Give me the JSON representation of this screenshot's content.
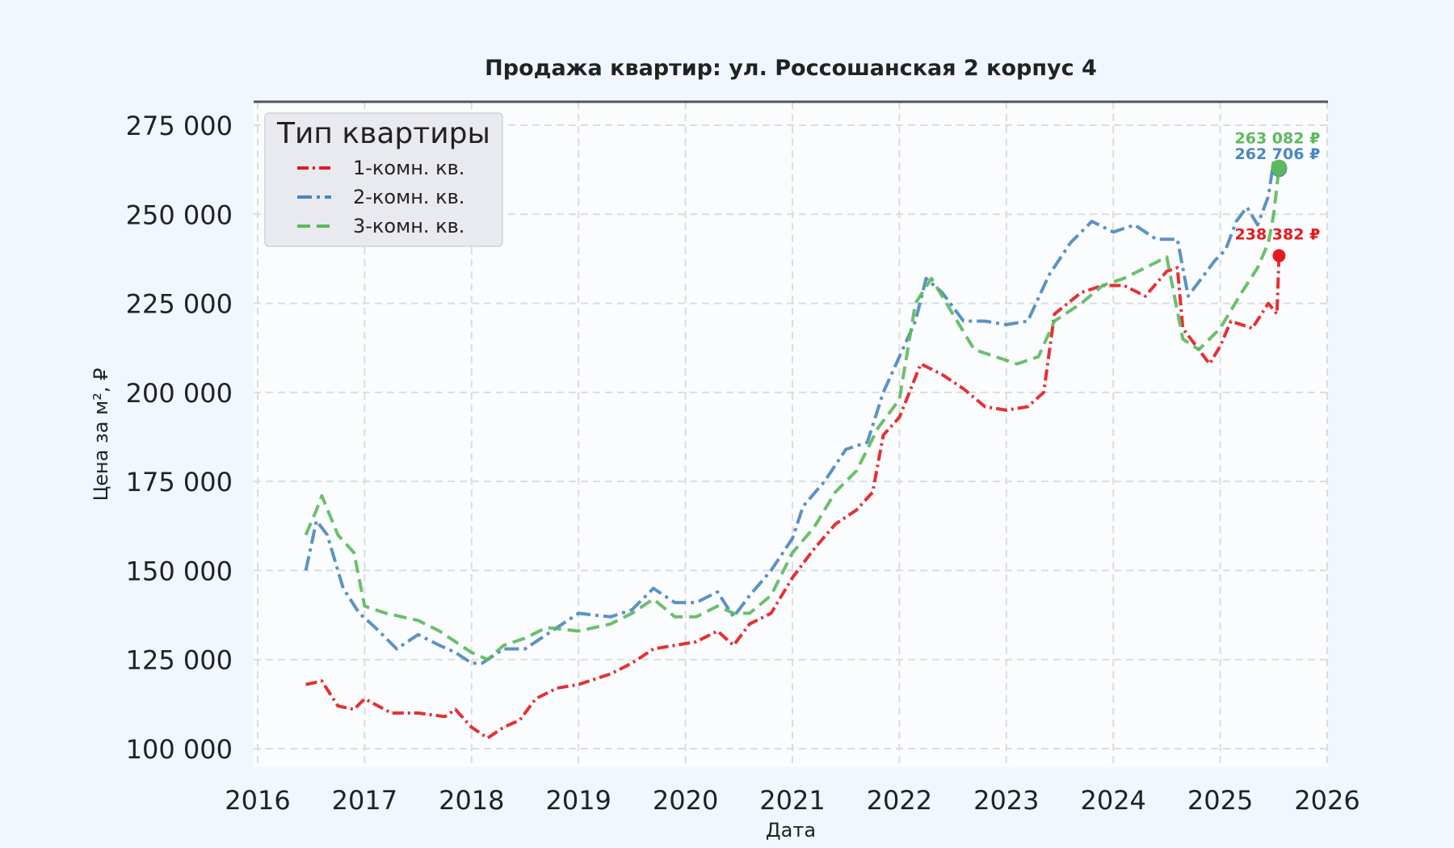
{
  "chart_data": {
    "type": "line",
    "title": "Продажа квартир: ул. Россошанская 2 корпус 4",
    "xlabel": "Дата",
    "ylabel": "Цена за м², ₽",
    "xlim": [
      2016.0,
      2026.0
    ],
    "ylim": [
      95000,
      280000
    ],
    "x_ticks": [
      "2016",
      "2017",
      "2018",
      "2019",
      "2020",
      "2021",
      "2022",
      "2023",
      "2024",
      "2025",
      "2026"
    ],
    "y_ticks": [
      "100 000",
      "125 000",
      "150 000",
      "175 000",
      "200 000",
      "225 000",
      "250 000",
      "275 000"
    ],
    "grid": true,
    "legend": {
      "title": "Тип квартиры",
      "placement": "top-left"
    },
    "series": [
      {
        "name": "1-комн. кв.",
        "color": "#e41a1c",
        "dash": "dot-dash",
        "end_label": "238 382 ₽",
        "x": [
          2016.45,
          2016.6,
          2016.75,
          2016.9,
          2017.0,
          2017.25,
          2017.5,
          2017.75,
          2017.85,
          2018.0,
          2018.15,
          2018.3,
          2018.45,
          2018.6,
          2018.8,
          2019.0,
          2019.3,
          2019.5,
          2019.7,
          2019.9,
          2020.1,
          2020.3,
          2020.45,
          2020.6,
          2020.8,
          2021.0,
          2021.2,
          2021.4,
          2021.6,
          2021.75,
          2021.85,
          2022.0,
          2022.2,
          2022.4,
          2022.6,
          2022.8,
          2023.0,
          2023.2,
          2023.35,
          2023.45,
          2023.7,
          2023.9,
          2024.1,
          2024.3,
          2024.5,
          2024.6,
          2024.65,
          2024.8,
          2024.9,
          2025.0,
          2025.1,
          2025.3,
          2025.45,
          2025.53,
          2025.55
        ],
        "y": [
          118000,
          119000,
          112000,
          111000,
          114000,
          110000,
          110000,
          109000,
          111000,
          106000,
          103000,
          106000,
          108000,
          114000,
          117000,
          118000,
          121000,
          124000,
          128000,
          129000,
          130000,
          133000,
          129000,
          135000,
          138000,
          148000,
          156000,
          163000,
          167000,
          172000,
          188000,
          193000,
          208000,
          205000,
          201000,
          196000,
          195000,
          196000,
          200000,
          222000,
          228000,
          230000,
          230000,
          227000,
          234000,
          235000,
          218000,
          212000,
          208000,
          213000,
          220000,
          218000,
          225000,
          222000,
          238382
        ]
      },
      {
        "name": "2-комн. кв.",
        "color": "#4a86c0",
        "dash": "dash-dot",
        "end_label": "262 706 ₽",
        "x": [
          2016.45,
          2016.55,
          2016.65,
          2016.8,
          2016.95,
          2017.1,
          2017.3,
          2017.5,
          2017.7,
          2017.85,
          2018.0,
          2018.1,
          2018.3,
          2018.5,
          2018.7,
          2019.0,
          2019.3,
          2019.5,
          2019.7,
          2019.9,
          2020.1,
          2020.3,
          2020.45,
          2020.6,
          2020.8,
          2021.0,
          2021.1,
          2021.3,
          2021.5,
          2021.7,
          2021.85,
          2022.0,
          2022.15,
          2022.25,
          2022.4,
          2022.6,
          2022.8,
          2023.0,
          2023.2,
          2023.4,
          2023.6,
          2023.8,
          2024.0,
          2024.2,
          2024.4,
          2024.6,
          2024.7,
          2024.85,
          2024.95,
          2025.05,
          2025.15,
          2025.25,
          2025.35,
          2025.45,
          2025.5,
          2025.55
        ],
        "y": [
          150000,
          164000,
          160000,
          145000,
          138000,
          134000,
          128000,
          132000,
          129000,
          127000,
          124000,
          124000,
          128000,
          128000,
          132000,
          138000,
          137000,
          139000,
          145000,
          141000,
          141000,
          144000,
          137000,
          143000,
          150000,
          159000,
          168000,
          175000,
          184000,
          186000,
          200000,
          210000,
          220000,
          232000,
          228000,
          220000,
          220000,
          219000,
          220000,
          233000,
          242000,
          248000,
          245000,
          247000,
          243000,
          243000,
          227000,
          233000,
          237000,
          240000,
          248000,
          252000,
          247000,
          255000,
          265000,
          262706
        ]
      },
      {
        "name": "3-комн. кв.",
        "color": "#5cb85c",
        "dash": "dash",
        "end_label": "263 082 ₽",
        "x": [
          2016.45,
          2016.55,
          2016.6,
          2016.75,
          2016.9,
          2017.0,
          2017.2,
          2017.5,
          2017.7,
          2017.85,
          2018.0,
          2018.15,
          2018.3,
          2018.5,
          2018.7,
          2019.0,
          2019.3,
          2019.5,
          2019.7,
          2019.9,
          2020.1,
          2020.3,
          2020.45,
          2020.6,
          2020.8,
          2021.0,
          2021.2,
          2021.4,
          2021.6,
          2021.8,
          2022.0,
          2022.15,
          2022.3,
          2022.5,
          2022.7,
          2022.9,
          2023.1,
          2023.3,
          2023.45,
          2023.7,
          2023.9,
          2024.1,
          2024.3,
          2024.5,
          2024.65,
          2024.8,
          2025.0,
          2025.2,
          2025.35,
          2025.45,
          2025.5,
          2025.55
        ],
        "y": [
          160000,
          167000,
          171000,
          160000,
          155000,
          140000,
          138000,
          136000,
          133000,
          130000,
          127000,
          125000,
          129000,
          131000,
          134000,
          133000,
          135000,
          138000,
          142000,
          137000,
          137000,
          140000,
          138000,
          138000,
          143000,
          155000,
          162000,
          172000,
          178000,
          190000,
          198000,
          225000,
          232000,
          222000,
          212000,
          210000,
          208000,
          210000,
          220000,
          225000,
          230000,
          232000,
          235000,
          238000,
          215000,
          212000,
          218000,
          228000,
          235000,
          242000,
          250000,
          263082
        ]
      }
    ]
  }
}
